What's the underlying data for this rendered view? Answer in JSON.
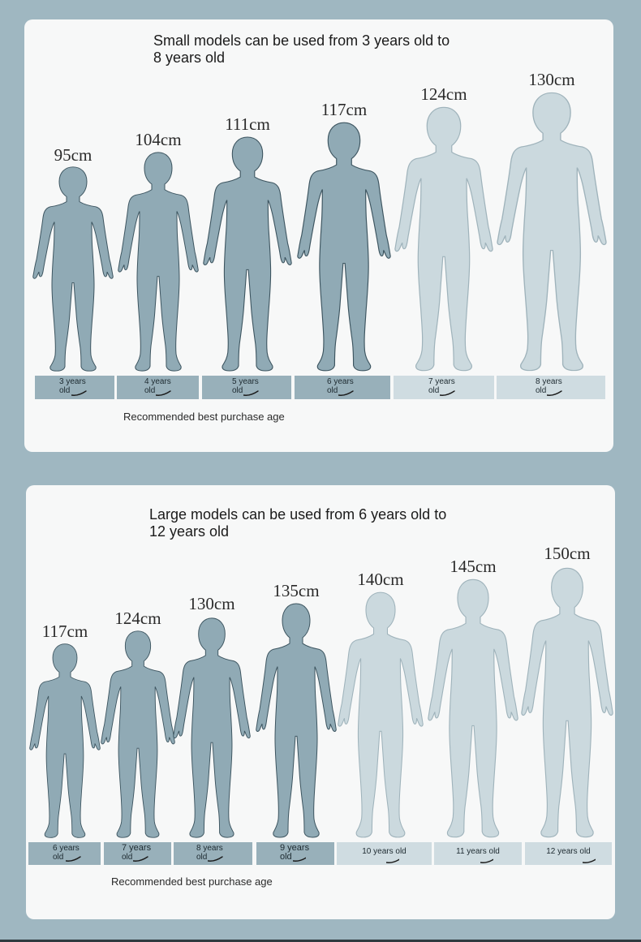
{
  "colors": {
    "background": "#9fb7c1",
    "panel": "#f7f8f8",
    "dark": "#90aab5",
    "light": "#cbd9de",
    "dark_label": "#98b0ba",
    "light_label": "#cfdce1"
  },
  "small": {
    "title": "Small models can be used from 3 years old to\n8 years old",
    "recommended": "Recommended best purchase age",
    "heights": [
      "95cm",
      "104cm",
      "111cm",
      "117cm",
      "124cm",
      "130cm"
    ],
    "ages": [
      {
        "l1": "3 years",
        "l2": "old"
      },
      {
        "l1": "4 years",
        "l2": "old"
      },
      {
        "l1": "5 years",
        "l2": "old"
      },
      {
        "l1": "6 years",
        "l2": "old"
      },
      {
        "l1": "7 years",
        "l2": "old"
      },
      {
        "l1": "8 years",
        "l2": "old"
      }
    ]
  },
  "large": {
    "title": "Large models can be used from 6 years old to\n12 years old",
    "recommended": "Recommended best purchase age",
    "heights": [
      "117cm",
      "124cm",
      "130cm",
      "135cm",
      "140cm",
      "145cm",
      "150cm"
    ],
    "ages": [
      {
        "l1": "6 years",
        "l2": "old"
      },
      {
        "l1": "7 years",
        "l2": "old"
      },
      {
        "l1": "8 years",
        "l2": "old"
      },
      {
        "l1": "9 years",
        "l2": "old"
      },
      {
        "l1": "10 years old",
        "l2": ""
      },
      {
        "l1": "11 years old",
        "l2": ""
      },
      {
        "l1": "12 years old",
        "l2": ""
      }
    ]
  }
}
